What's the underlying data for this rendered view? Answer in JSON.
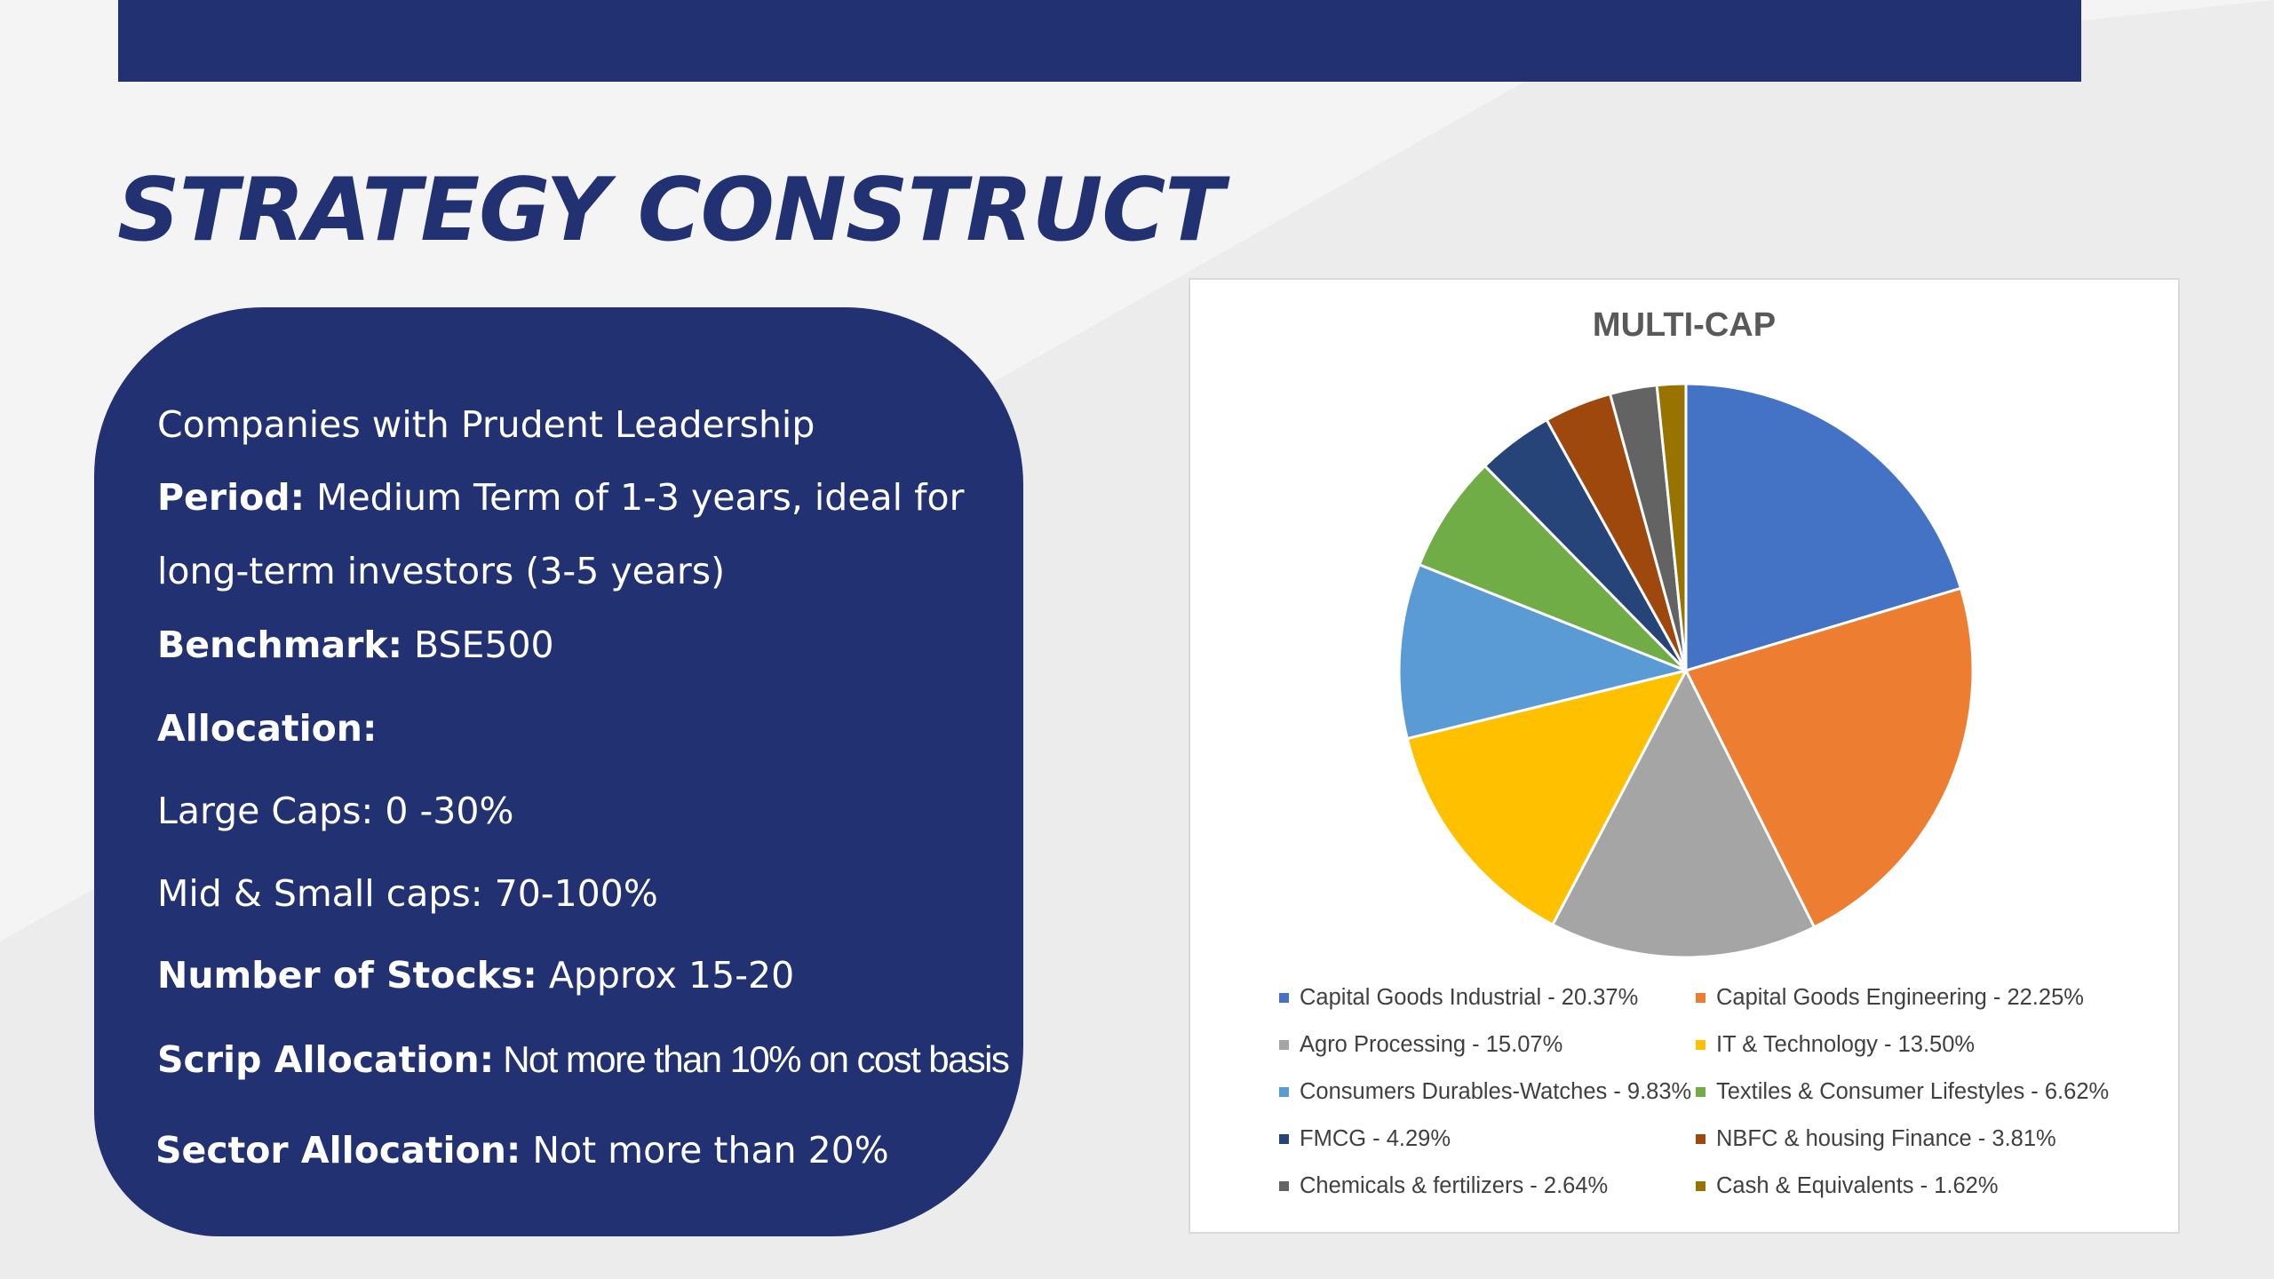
{
  "slide": {
    "title": "STRATEGY CONSTRUCT"
  },
  "info": {
    "intro": "Companies with Prudent Leadership",
    "period_label": "Period:",
    "period_value": " Medium Term of 1-3 years, ideal for",
    "period_value_cont": "long-term investors (3-5 years)",
    "benchmark_label": "Benchmark:",
    "benchmark_value": " BSE500",
    "allocation_label": "Allocation:",
    "large_caps": "Large Caps: 0 -30%",
    "mid_small_caps": "Mid & Small caps: 70-100%",
    "stocks_label": "Number of Stocks:",
    "stocks_value": " Approx 15-20",
    "scrip_label": "Scrip Allocation:",
    "scrip_value": " Not more than 10% on cost basis",
    "sector_label": "Sector Allocation:",
    "sector_value": " Not more than 20%"
  },
  "colors": {
    "navy": "#213171",
    "white": "#ffffff"
  },
  "chart_data": {
    "type": "pie",
    "title": "MULTI-CAP",
    "legend_position": "bottom",
    "slices": [
      {
        "label": "Capital Goods Industrial - 20.37%",
        "value": 20.37,
        "color": "#4472C4"
      },
      {
        "label": "Capital Goods Engineering - 22.25%",
        "value": 22.25,
        "color": "#ED7D31"
      },
      {
        "label": "Agro Processing - 15.07%",
        "value": 15.07,
        "color": "#A5A5A5"
      },
      {
        "label": "IT & Technology - 13.50%",
        "value": 13.5,
        "color": "#FFC000"
      },
      {
        "label": "Consumers Durables-Watches - 9.83%",
        "value": 9.83,
        "color": "#5B9BD5"
      },
      {
        "label": "Textiles & Consumer Lifestyles - 6.62%",
        "value": 6.62,
        "color": "#70AD47"
      },
      {
        "label": "FMCG - 4.29%",
        "value": 4.29,
        "color": "#264478"
      },
      {
        "label": "NBFC & housing Finance - 3.81%",
        "value": 3.81,
        "color": "#9E480E"
      },
      {
        "label": "Chemicals & fertilizers - 2.64%",
        "value": 2.64,
        "color": "#636363"
      },
      {
        "label": "Cash & Equivalents - 1.62%",
        "value": 1.62,
        "color": "#997300"
      }
    ]
  }
}
